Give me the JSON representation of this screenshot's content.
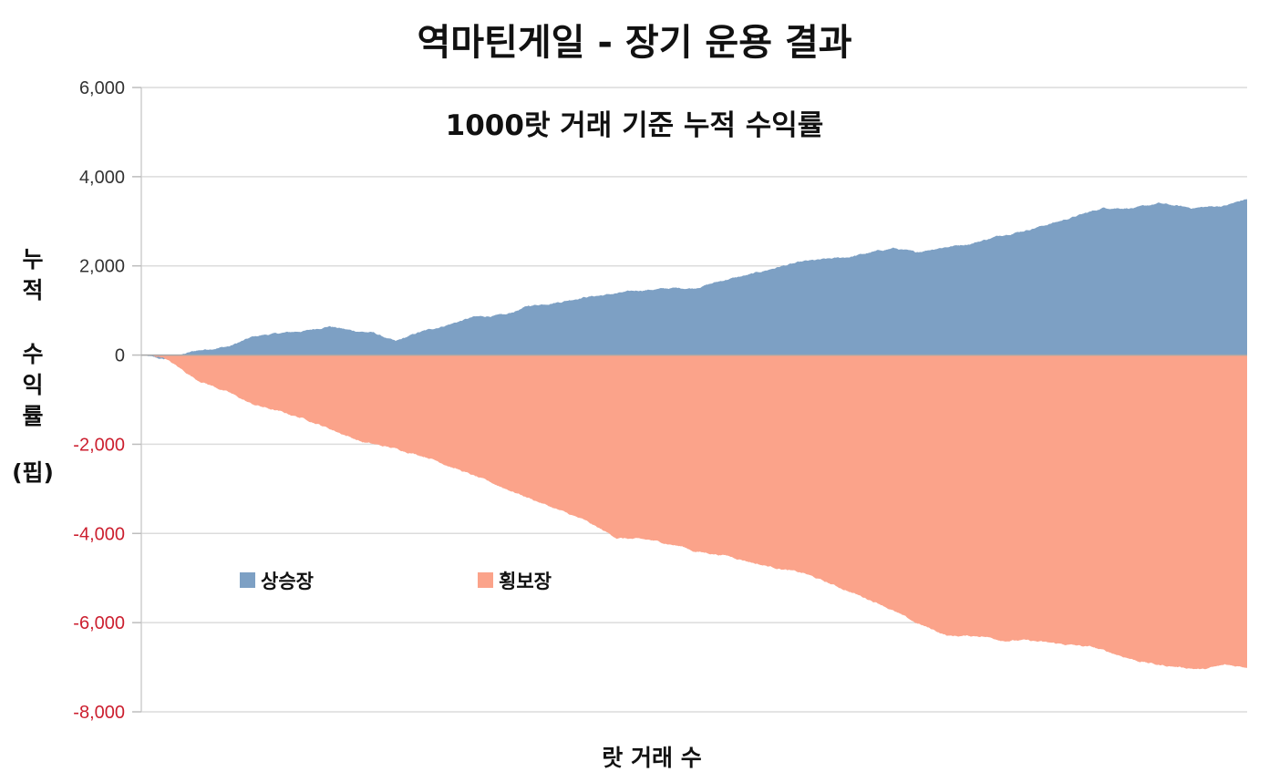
{
  "chart_data": {
    "type": "area",
    "title": "역마틴게일 - 장기 운용 결과",
    "subtitle": "1000랏 거래 기준 누적 수익률",
    "xlabel": "랏 거래 수",
    "ylabel_lines": [
      "누",
      "적",
      "수",
      "익",
      "률",
      "(핍)"
    ],
    "ylim": [
      -8000,
      6000
    ],
    "yticks": [
      6000,
      4000,
      2000,
      0,
      -2000,
      -4000,
      -6000,
      -8000
    ],
    "ytick_labels": [
      "6,000",
      "4,000",
      "2,000",
      "0",
      "-2,000",
      "-4,000",
      "-6,000",
      "-8,000"
    ],
    "xlim": [
      0,
      1000
    ],
    "grid": true,
    "legend_position": "lower-left",
    "series": [
      {
        "name": "상승장",
        "color": "#7da0c4",
        "x": [
          0,
          20,
          50,
          80,
          100,
          110,
          130,
          150,
          170,
          190,
          210,
          220,
          230,
          240,
          250,
          280,
          300,
          330,
          350,
          380,
          400,
          420,
          450,
          480,
          500,
          530,
          550,
          580,
          600,
          640,
          660,
          680,
          700,
          720,
          750,
          780,
          800,
          830,
          850,
          870,
          900,
          920,
          950,
          980,
          1000
        ],
        "values": [
          0,
          -100,
          100,
          200,
          400,
          450,
          500,
          550,
          650,
          550,
          500,
          400,
          300,
          400,
          500,
          700,
          850,
          900,
          1100,
          1200,
          1300,
          1350,
          1450,
          1500,
          1500,
          1700,
          1800,
          2000,
          2100,
          2200,
          2300,
          2400,
          2300,
          2400,
          2500,
          2700,
          2800,
          3000,
          3150,
          3300,
          3300,
          3400,
          3300,
          3350,
          3500
        ]
      },
      {
        "name": "횡보장",
        "color": "#fba38a",
        "x": [
          0,
          20,
          50,
          80,
          100,
          130,
          150,
          170,
          200,
          230,
          260,
          300,
          330,
          360,
          400,
          430,
          460,
          490,
          500,
          530,
          560,
          600,
          640,
          670,
          700,
          730,
          760,
          780,
          800,
          820,
          840,
          860,
          880,
          900,
          920,
          940,
          960,
          980,
          1000
        ],
        "values": [
          0,
          -50,
          -550,
          -850,
          -1100,
          -1300,
          -1450,
          -1650,
          -1950,
          -2100,
          -2300,
          -2700,
          -3000,
          -3300,
          -3700,
          -4100,
          -4150,
          -4300,
          -4400,
          -4500,
          -4700,
          -4900,
          -5300,
          -5600,
          -6000,
          -6300,
          -6300,
          -6400,
          -6400,
          -6450,
          -6500,
          -6550,
          -6700,
          -6850,
          -6950,
          -7000,
          -7050,
          -6950,
          -7000
        ]
      }
    ]
  }
}
